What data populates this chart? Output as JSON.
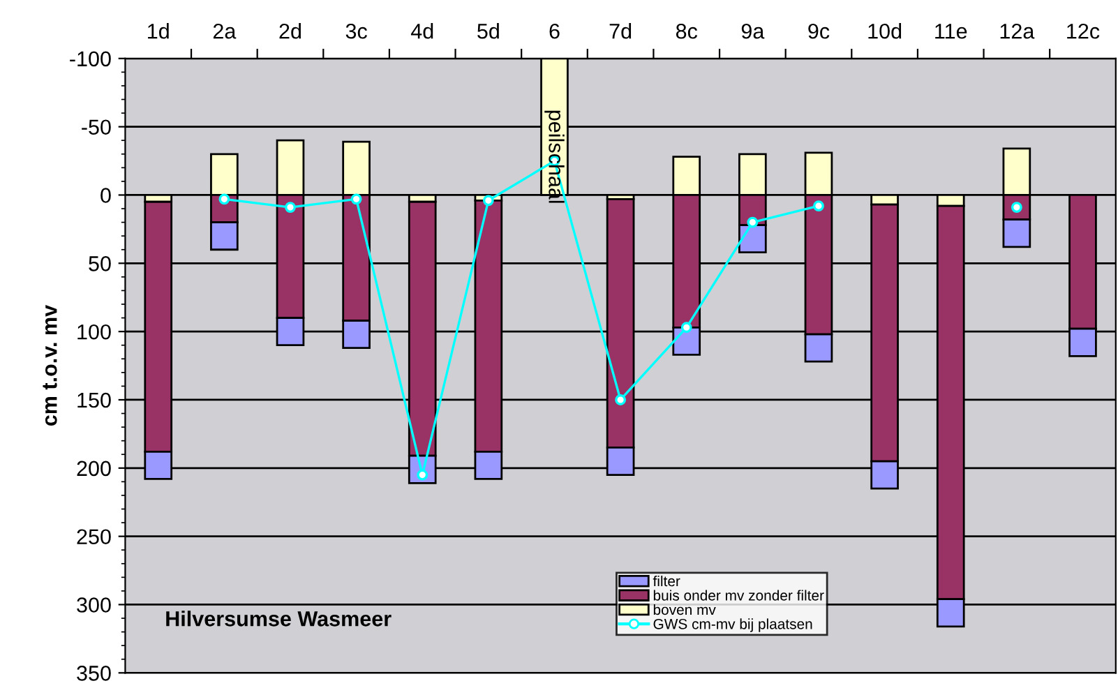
{
  "chart_data": {
    "type": "bar",
    "stacked": true,
    "ylabel": "cm t.o.v. mv",
    "categories": [
      "1d",
      "2a",
      "2d",
      "3c",
      "4d",
      "5d",
      "6",
      "7d",
      "8c",
      "9a",
      "9c",
      "10d",
      "11e",
      "12a",
      "12c"
    ],
    "series": [
      {
        "name": "boven mv",
        "color": "#ffffcc",
        "values": [
          5,
          -30,
          -40,
          -39,
          5,
          4,
          -100,
          3,
          -28,
          -30,
          -31,
          7,
          8,
          -34,
          null
        ]
      },
      {
        "name": "buis onder mv zonder filter",
        "color": "#993366",
        "values": [
          183,
          20,
          90,
          92,
          186,
          184,
          null,
          182,
          97,
          22,
          102,
          188,
          288,
          18,
          98
        ]
      },
      {
        "name": "filter",
        "color": "#9999ff",
        "values": [
          20,
          20,
          20,
          20,
          20,
          20,
          null,
          20,
          20,
          20,
          20,
          20,
          20,
          20,
          20
        ]
      },
      {
        "name": "GWS cm-mv bij plaatsen",
        "type": "line",
        "color": "#00ffff",
        "marker": "circle",
        "values": [
          null,
          3,
          9,
          3,
          205,
          4,
          -25,
          150,
          97,
          20,
          8,
          null,
          null,
          9,
          null
        ]
      }
    ],
    "ylim": [
      350,
      -100
    ],
    "yticks": [
      -100,
      -50,
      0,
      50,
      100,
      150,
      200,
      250,
      300,
      350
    ],
    "grid": "y",
    "legend": "bottom",
    "annotations": [
      "Hilversumse Wasmeer",
      "peilschaal"
    ]
  }
}
